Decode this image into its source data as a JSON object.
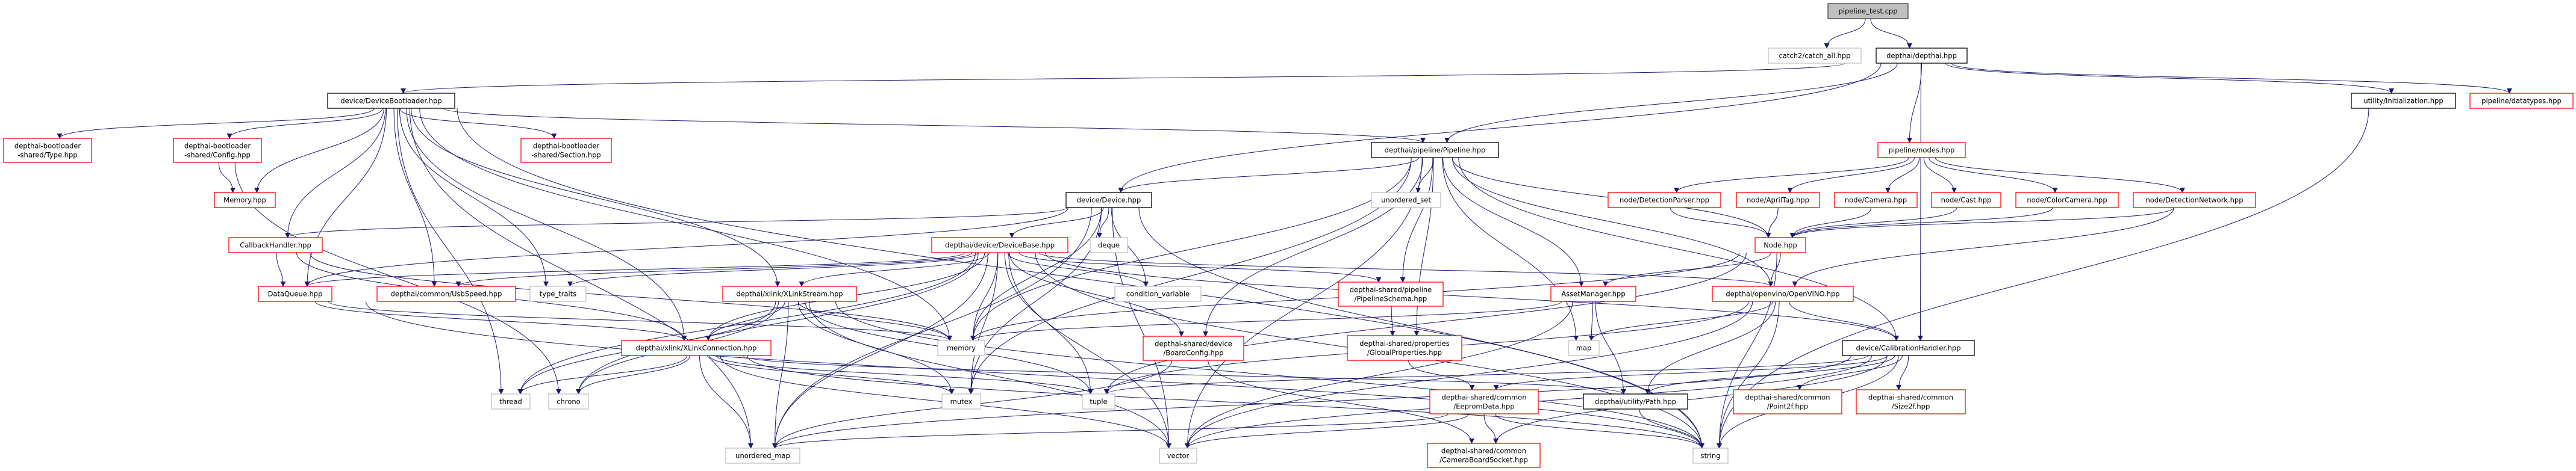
{
  "graph": {
    "edge_color": "#191970",
    "nodes": [
      {
        "id": "root",
        "label": [
          "pipeline_test.cpp"
        ],
        "style": "root"
      },
      {
        "id": "catch",
        "label": [
          "catch2/catch_all.hpp"
        ],
        "style": "gray"
      },
      {
        "id": "depthai",
        "label": [
          "depthai/depthai.hpp"
        ],
        "style": "black"
      },
      {
        "id": "bootloader",
        "label": [
          "device/DeviceBootloader.hpp"
        ],
        "style": "black"
      },
      {
        "id": "initialization",
        "label": [
          "utility/Initialization.hpp"
        ],
        "style": "black"
      },
      {
        "id": "datatypes",
        "label": [
          "pipeline/datatypes.hpp"
        ],
        "style": "red"
      },
      {
        "id": "bl_type",
        "label": [
          "depthai-bootloader",
          "-shared/Type.hpp"
        ],
        "style": "red"
      },
      {
        "id": "bl_config",
        "label": [
          "depthai-bootloader",
          "-shared/Config.hpp"
        ],
        "style": "red"
      },
      {
        "id": "bl_section",
        "label": [
          "depthai-bootloader",
          "-shared/Section.hpp"
        ],
        "style": "red"
      },
      {
        "id": "memory_hpp",
        "label": [
          "Memory.hpp"
        ],
        "style": "red"
      },
      {
        "id": "pipeline",
        "label": [
          "depthai/pipeline/Pipeline.hpp"
        ],
        "style": "black"
      },
      {
        "id": "nodes",
        "label": [
          "pipeline/nodes.hpp"
        ],
        "style": "red"
      },
      {
        "id": "device",
        "label": [
          "device/Device.hpp"
        ],
        "style": "black"
      },
      {
        "id": "unordered_set",
        "label": [
          "unordered_set"
        ],
        "style": "gray"
      },
      {
        "id": "detparser",
        "label": [
          "node/DetectionParser.hpp"
        ],
        "style": "red"
      },
      {
        "id": "apriltag",
        "label": [
          "node/AprilTag.hpp"
        ],
        "style": "red"
      },
      {
        "id": "camera",
        "label": [
          "node/Camera.hpp"
        ],
        "style": "red"
      },
      {
        "id": "cast",
        "label": [
          "node/Cast.hpp"
        ],
        "style": "red"
      },
      {
        "id": "colorcamera",
        "label": [
          "node/ColorCamera.hpp"
        ],
        "style": "red"
      },
      {
        "id": "detnetwork",
        "label": [
          "node/DetectionNetwork.hpp"
        ],
        "style": "red"
      },
      {
        "id": "callback",
        "label": [
          "CallbackHandler.hpp"
        ],
        "style": "red"
      },
      {
        "id": "devicebase",
        "label": [
          "depthai/device/DeviceBase.hpp"
        ],
        "style": "red"
      },
      {
        "id": "deque",
        "label": [
          "deque"
        ],
        "style": "gray"
      },
      {
        "id": "node",
        "label": [
          "Node.hpp"
        ],
        "style": "red"
      },
      {
        "id": "dataqueue",
        "label": [
          "DataQueue.hpp"
        ],
        "style": "red"
      },
      {
        "id": "usbspeed",
        "label": [
          "depthai/common/UsbSpeed.hpp"
        ],
        "style": "red"
      },
      {
        "id": "type_traits",
        "label": [
          "type_traits"
        ],
        "style": "gray"
      },
      {
        "id": "xlinkstream",
        "label": [
          "depthai/xlink/XLinkStream.hpp"
        ],
        "style": "red"
      },
      {
        "id": "condvar",
        "label": [
          "condition_variable"
        ],
        "style": "gray"
      },
      {
        "id": "schema",
        "label": [
          "depthai-shared/pipeline",
          "/PipelineSchema.hpp"
        ],
        "style": "red"
      },
      {
        "id": "assetmgr",
        "label": [
          "AssetManager.hpp"
        ],
        "style": "red"
      },
      {
        "id": "openvino",
        "label": [
          "depthai/openvino/OpenVINO.hpp"
        ],
        "style": "red"
      },
      {
        "id": "xlinkconn",
        "label": [
          "depthai/xlink/XLinkConnection.hpp"
        ],
        "style": "red"
      },
      {
        "id": "memory",
        "label": [
          "memory"
        ],
        "style": "gray"
      },
      {
        "id": "boardconfig",
        "label": [
          "depthai-shared/device",
          "/BoardConfig.hpp"
        ],
        "style": "red"
      },
      {
        "id": "globalprops",
        "label": [
          "depthai-shared/properties",
          "/GlobalProperties.hpp"
        ],
        "style": "red"
      },
      {
        "id": "map",
        "label": [
          "map"
        ],
        "style": "gray"
      },
      {
        "id": "calib",
        "label": [
          "device/CalibrationHandler.hpp"
        ],
        "style": "black"
      },
      {
        "id": "thread",
        "label": [
          "thread"
        ],
        "style": "gray"
      },
      {
        "id": "chrono",
        "label": [
          "chrono"
        ],
        "style": "gray"
      },
      {
        "id": "mutex",
        "label": [
          "mutex"
        ],
        "style": "gray"
      },
      {
        "id": "tuple",
        "label": [
          "tuple"
        ],
        "style": "gray"
      },
      {
        "id": "eeprom",
        "label": [
          "depthai-shared/common",
          "/EepromData.hpp"
        ],
        "style": "red"
      },
      {
        "id": "path",
        "label": [
          "depthai/utility/Path.hpp"
        ],
        "style": "black"
      },
      {
        "id": "point2f",
        "label": [
          "depthai-shared/common",
          "/Point2f.hpp"
        ],
        "style": "red"
      },
      {
        "id": "size2f",
        "label": [
          "depthai-shared/common",
          "/Size2f.hpp"
        ],
        "style": "red"
      },
      {
        "id": "unordered_map",
        "label": [
          "unordered_map"
        ],
        "style": "gray"
      },
      {
        "id": "vector",
        "label": [
          "vector"
        ],
        "style": "gray"
      },
      {
        "id": "camsocket",
        "label": [
          "depthai-shared/common",
          "/CameraBoardSocket.hpp"
        ],
        "style": "red"
      },
      {
        "id": "string",
        "label": [
          "string"
        ],
        "style": "gray"
      }
    ],
    "edges": [
      [
        "root",
        "catch"
      ],
      [
        "root",
        "depthai"
      ],
      [
        "depthai",
        "bootloader"
      ],
      [
        "depthai",
        "device"
      ],
      [
        "depthai",
        "pipeline"
      ],
      [
        "depthai",
        "nodes"
      ],
      [
        "depthai",
        "calib"
      ],
      [
        "depthai",
        "initialization"
      ],
      [
        "depthai",
        "datatypes"
      ],
      [
        "bootloader",
        "bl_type"
      ],
      [
        "bootloader",
        "bl_config"
      ],
      [
        "bootloader",
        "memory_hpp"
      ],
      [
        "bootloader",
        "bl_section"
      ],
      [
        "bootloader",
        "callback"
      ],
      [
        "bootloader",
        "dataqueue"
      ],
      [
        "bootloader",
        "usbspeed"
      ],
      [
        "bootloader",
        "type_traits"
      ],
      [
        "bootloader",
        "xlinkstream"
      ],
      [
        "bootloader",
        "xlinkconn"
      ],
      [
        "bootloader",
        "pipeline"
      ],
      [
        "bootloader",
        "thread"
      ],
      [
        "bootloader",
        "unordered_map"
      ],
      [
        "bootloader",
        "string"
      ],
      [
        "bootloader",
        "memory"
      ],
      [
        "bl_config",
        "memory_hpp"
      ],
      [
        "bl_config",
        "chrono"
      ],
      [
        "pipeline",
        "device"
      ],
      [
        "pipeline",
        "unordered_set"
      ],
      [
        "pipeline",
        "schema"
      ],
      [
        "pipeline",
        "globalprops"
      ],
      [
        "pipeline",
        "assetmgr"
      ],
      [
        "pipeline",
        "openvino"
      ],
      [
        "pipeline",
        "node"
      ],
      [
        "pipeline",
        "map"
      ],
      [
        "pipeline",
        "memory"
      ],
      [
        "pipeline",
        "vector"
      ],
      [
        "pipeline",
        "boardconfig"
      ],
      [
        "pipeline",
        "calib"
      ],
      [
        "pipeline",
        "mutex"
      ],
      [
        "nodes",
        "detparser"
      ],
      [
        "nodes",
        "apriltag"
      ],
      [
        "nodes",
        "camera"
      ],
      [
        "nodes",
        "cast"
      ],
      [
        "nodes",
        "colorcamera"
      ],
      [
        "nodes",
        "detnetwork"
      ],
      [
        "detparser",
        "node"
      ],
      [
        "apriltag",
        "node"
      ],
      [
        "camera",
        "node"
      ],
      [
        "cast",
        "node"
      ],
      [
        "colorcamera",
        "node"
      ],
      [
        "detnetwork",
        "node"
      ],
      [
        "detnetwork",
        "openvino"
      ],
      [
        "device",
        "devicebase"
      ],
      [
        "device",
        "deque"
      ],
      [
        "device",
        "condvar"
      ],
      [
        "device",
        "memory"
      ],
      [
        "device",
        "mutex"
      ],
      [
        "device",
        "callback"
      ],
      [
        "device",
        "dataqueue"
      ],
      [
        "device",
        "unordered_map"
      ],
      [
        "device",
        "vector"
      ],
      [
        "device",
        "string"
      ],
      [
        "callback",
        "dataqueue"
      ],
      [
        "callback",
        "xlinkconn"
      ],
      [
        "callback",
        "memory"
      ],
      [
        "devicebase",
        "xlinkstream"
      ],
      [
        "devicebase",
        "xlinkconn"
      ],
      [
        "devicebase",
        "memory"
      ],
      [
        "devicebase",
        "mutex"
      ],
      [
        "devicebase",
        "tuple"
      ],
      [
        "devicebase",
        "vector"
      ],
      [
        "devicebase",
        "condvar"
      ],
      [
        "devicebase",
        "boardconfig"
      ],
      [
        "devicebase",
        "openvino"
      ],
      [
        "devicebase",
        "calib"
      ],
      [
        "devicebase",
        "schema"
      ],
      [
        "devicebase",
        "usbspeed"
      ],
      [
        "devicebase",
        "type_traits"
      ],
      [
        "devicebase",
        "thread"
      ],
      [
        "devicebase",
        "chrono"
      ],
      [
        "devicebase",
        "unordered_map"
      ],
      [
        "devicebase",
        "string"
      ],
      [
        "devicebase",
        "dataqueue"
      ],
      [
        "dataqueue",
        "xlinkconn"
      ],
      [
        "dataqueue",
        "memory"
      ],
      [
        "dataqueue",
        "string"
      ],
      [
        "node",
        "assetmgr"
      ],
      [
        "node",
        "openvino"
      ],
      [
        "node",
        "memory"
      ],
      [
        "node",
        "tuple"
      ],
      [
        "node",
        "string"
      ],
      [
        "assetmgr",
        "map"
      ],
      [
        "assetmgr",
        "memory"
      ],
      [
        "assetmgr",
        "path"
      ],
      [
        "assetmgr",
        "vector"
      ],
      [
        "openvino",
        "map"
      ],
      [
        "openvino",
        "path"
      ],
      [
        "openvino",
        "vector"
      ],
      [
        "openvino",
        "string"
      ],
      [
        "openvino",
        "tuple"
      ],
      [
        "openvino",
        "calib"
      ],
      [
        "xlinkstream",
        "xlinkconn"
      ],
      [
        "xlinkstream",
        "memory"
      ],
      [
        "xlinkstream",
        "mutex"
      ],
      [
        "xlinkstream",
        "tuple"
      ],
      [
        "xlinkstream",
        "thread"
      ],
      [
        "xlinkstream",
        "chrono"
      ],
      [
        "xlinkstream",
        "unordered_map"
      ],
      [
        "xlinkstream",
        "vector"
      ],
      [
        "xlinkstream",
        "string"
      ],
      [
        "xlinkconn",
        "thread"
      ],
      [
        "xlinkconn",
        "chrono"
      ],
      [
        "xlinkconn",
        "mutex"
      ],
      [
        "xlinkconn",
        "tuple"
      ],
      [
        "xlinkconn",
        "unordered_map"
      ],
      [
        "xlinkconn",
        "vector"
      ],
      [
        "xlinkconn",
        "string"
      ],
      [
        "xlinkconn",
        "path"
      ],
      [
        "schema",
        "globalprops"
      ],
      [
        "globalprops",
        "eeprom"
      ],
      [
        "boardconfig",
        "camsocket"
      ],
      [
        "boardconfig",
        "unordered_map"
      ],
      [
        "calib",
        "eeprom"
      ],
      [
        "calib",
        "path"
      ],
      [
        "calib",
        "point2f"
      ],
      [
        "calib",
        "size2f"
      ],
      [
        "calib",
        "camsocket"
      ],
      [
        "calib",
        "string"
      ],
      [
        "calib",
        "vector"
      ],
      [
        "calib",
        "tuple"
      ],
      [
        "calib",
        "unordered_map"
      ],
      [
        "eeprom",
        "camsocket"
      ],
      [
        "eeprom",
        "string"
      ],
      [
        "eeprom",
        "vector"
      ],
      [
        "eeprom",
        "unordered_map"
      ],
      [
        "path",
        "string"
      ],
      [
        "initialization",
        "string"
      ]
    ]
  }
}
